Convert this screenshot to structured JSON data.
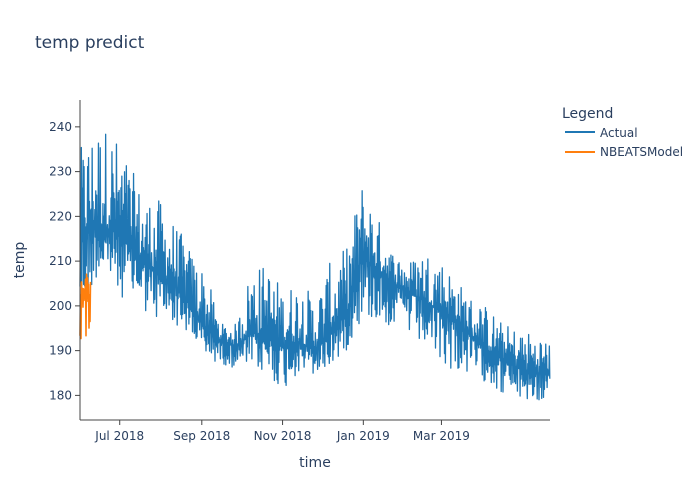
{
  "chart_data": {
    "type": "line",
    "title": "temp predict",
    "xlabel": "time",
    "ylabel": "temp",
    "x_range": [
      "2018-06-01",
      "2019-05-22"
    ],
    "ylim": [
      174.5,
      246
    ],
    "x_ticks": [
      {
        "date": "2018-07-01",
        "label": "Jul 2018"
      },
      {
        "date": "2018-09-01",
        "label": "Sep 2018"
      },
      {
        "date": "2018-11-01",
        "label": "Nov 2018"
      },
      {
        "date": "2019-01-01",
        "label": "Jan 2019"
      },
      {
        "date": "2019-03-01",
        "label": "Mar 2019"
      }
    ],
    "y_ticks": [
      180,
      190,
      200,
      210,
      220,
      230,
      240
    ],
    "legend_title": "Legend",
    "series": [
      {
        "name": "Actual",
        "color": "#1f77b4",
        "envelope_start": "2018-06-01",
        "envelope_end": "2019-05-22",
        "center_values": [
          215,
          218,
          217,
          214,
          210,
          207,
          205,
          200,
          195,
          192,
          191,
          194,
          193,
          191,
          192,
          190,
          194,
          198,
          211,
          208,
          205,
          203,
          201,
          199,
          197,
          193,
          190,
          188,
          186,
          185,
          185
        ],
        "upper_values": [
          235,
          241,
          240,
          233,
          225,
          224,
          219,
          213,
          208,
          196,
          196,
          210,
          209,
          204,
          206,
          202,
          210,
          213,
          228,
          220,
          212,
          210,
          213,
          211,
          206,
          202,
          200,
          196,
          195,
          194,
          193
        ],
        "lower_values": [
          194,
          206,
          204,
          201,
          199,
          196,
          196,
          193,
          188,
          187,
          186,
          186,
          184,
          181,
          185,
          184,
          186,
          190,
          197,
          196,
          195,
          193,
          190,
          187,
          185,
          184,
          183,
          180,
          179,
          178,
          179
        ]
      },
      {
        "name": "NBEATSModel",
        "color": "#ff7f0e",
        "envelope_start": "2018-06-01",
        "envelope_end": "2018-06-09",
        "center_values": [
          202,
          204,
          203,
          202,
          201
        ],
        "upper_values": [
          212,
          211,
          210,
          210,
          209
        ],
        "lower_values": [
          191,
          192,
          193,
          192,
          195
        ]
      }
    ]
  }
}
